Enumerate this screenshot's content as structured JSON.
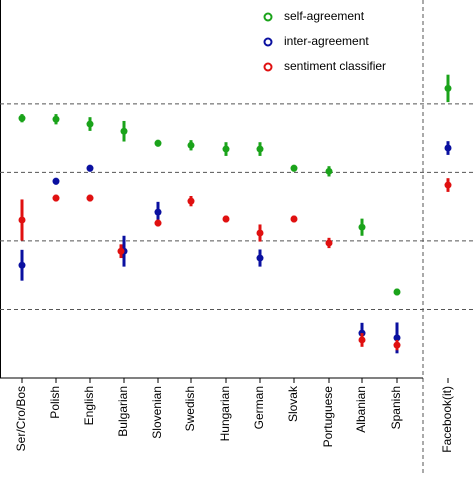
{
  "chart_data": {
    "type": "dot-error",
    "categories": [
      "Ser/Cro/Bos",
      "Polish",
      "English",
      "Bulgarian",
      "Slovenian",
      "Swedish",
      "Hungarian",
      "German",
      "Slovak",
      "Portuguese",
      "Albanian",
      "Spanish",
      "Facebook(it)"
    ],
    "series": [
      {
        "name": "self-agreement",
        "color": "#1aa31a",
        "values": [
          0.758,
          0.755,
          0.741,
          0.72,
          0.685,
          0.679,
          0.668,
          0.668,
          0.612,
          0.603,
          0.44,
          0.251,
          0.845
        ],
        "errors": [
          0.012,
          0.015,
          0.02,
          0.03,
          0.01,
          0.015,
          0.02,
          0.02,
          0.01,
          0.015,
          0.025,
          0.01,
          0.04
        ]
      },
      {
        "name": "inter-agreement",
        "color": "#0a10a0",
        "values": [
          0.329,
          0.574,
          0.612,
          0.37,
          0.484,
          null,
          null,
          0.35,
          null,
          null,
          0.131,
          0.117,
          0.671
        ],
        "errors": [
          0.045,
          0.01,
          0.01,
          0.045,
          0.03,
          null,
          null,
          0.025,
          null,
          null,
          0.03,
          0.045,
          0.02
        ]
      },
      {
        "name": "sentiment classifier",
        "color": "#e01010",
        "values": [
          0.461,
          0.525,
          0.525,
          0.37,
          0.452,
          0.516,
          0.464,
          0.423,
          0.464,
          0.394,
          0.111,
          0.096,
          0.563
        ],
        "errors": [
          0.06,
          0.01,
          0.01,
          0.02,
          0.01,
          0.015,
          0.01,
          0.025,
          0.01,
          0.015,
          0.02,
          0.015,
          0.02
        ]
      }
    ],
    "ylim": [
      0,
      1.1
    ],
    "yticks": [
      0.2,
      0.4,
      0.6,
      0.8
    ],
    "grid": true,
    "legend": "top"
  }
}
